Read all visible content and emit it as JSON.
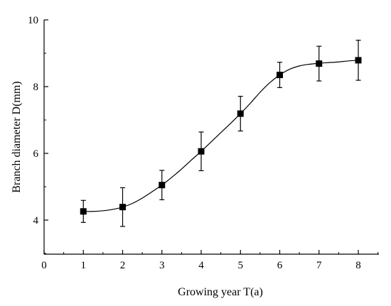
{
  "chart_data": {
    "type": "line",
    "title": "",
    "xlabel": "Growing year T(a)",
    "ylabel": "Branch diameter D(mm)",
    "xlim": [
      0,
      8.5
    ],
    "ylim": [
      3,
      10
    ],
    "x_ticks": [
      0,
      1,
      2,
      3,
      4,
      5,
      6,
      7,
      8
    ],
    "y_ticks": [
      4,
      6,
      8,
      10
    ],
    "x_tick_labels": [
      "0",
      "1",
      "2",
      "3",
      "4",
      "5",
      "6",
      "7",
      "8"
    ],
    "y_tick_labels": [
      "4",
      "6",
      "8",
      "10"
    ],
    "grid": false,
    "series": [
      {
        "marker": "square",
        "x": [
          1,
          2,
          3,
          4,
          5,
          6,
          7,
          8
        ],
        "y": [
          4.26,
          4.39,
          5.05,
          6.06,
          7.19,
          8.35,
          8.69,
          8.79
        ],
        "error": [
          0.33,
          0.58,
          0.44,
          0.58,
          0.52,
          0.38,
          0.52,
          0.6
        ]
      }
    ],
    "fit_curve": {
      "type": "sigmoid",
      "x": [
        1,
        1.25,
        1.5,
        1.75,
        2,
        2.25,
        2.5,
        2.75,
        3,
        3.25,
        3.5,
        3.75,
        4,
        4.25,
        4.5,
        4.75,
        5,
        5.25,
        5.5,
        5.75,
        6,
        6.25,
        6.5,
        6.75,
        7,
        7.25,
        7.5,
        7.75,
        8
      ],
      "y": [
        4.26,
        4.26,
        4.28,
        4.32,
        4.39,
        4.5,
        4.66,
        4.85,
        5.05,
        5.28,
        5.53,
        5.8,
        6.06,
        6.34,
        6.62,
        6.9,
        7.19,
        7.5,
        7.83,
        8.12,
        8.35,
        8.52,
        8.62,
        8.67,
        8.7,
        8.72,
        8.74,
        8.77,
        8.79
      ]
    }
  }
}
